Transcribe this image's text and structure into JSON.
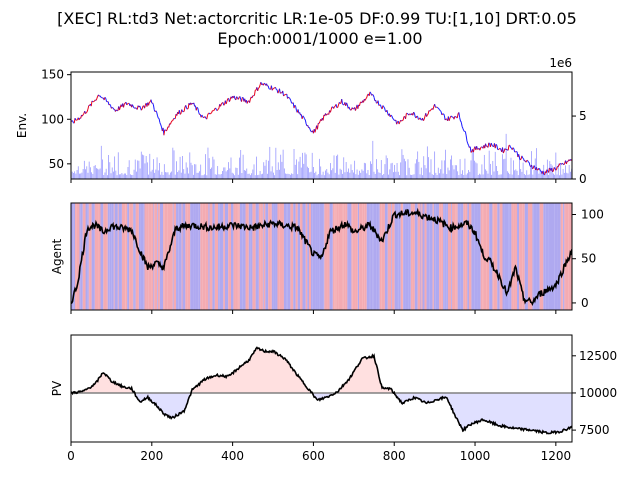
{
  "title_line1": "[XEC] RL:td3 Net:actorcritic LR:1e-05 DF:0.99 TU:[1,10] DRT:0.05",
  "title_line2": "Epoch:0001/1000 e=1.00",
  "chart_data": [
    {
      "type": "line",
      "panel": "env",
      "ylabel": "Env.",
      "x_range": [
        0,
        1240
      ],
      "ylim": [
        33,
        153
      ],
      "yticks": [
        "50",
        "100",
        "150"
      ],
      "right_axis": {
        "ylim": [
          0,
          8.5
        ],
        "ticks": [
          "0",
          "5"
        ],
        "offset_label": "1e6"
      },
      "series": [
        {
          "color": "#1a1aff",
          "x": [
            0,
            30,
            70,
            110,
            140,
            170,
            200,
            230,
            260,
            300,
            330,
            360,
            400,
            440,
            470,
            500,
            530,
            560,
            600,
            630,
            670,
            700,
            740,
            780,
            810,
            840,
            870,
            900,
            930,
            960,
            990,
            1010,
            1040,
            1070,
            1090,
            1110,
            1140,
            1170,
            1200,
            1240
          ],
          "y": [
            95,
            105,
            128,
            110,
            118,
            112,
            120,
            85,
            105,
            118,
            100,
            112,
            125,
            120,
            140,
            135,
            128,
            110,
            85,
            105,
            120,
            110,
            128,
            110,
            95,
            108,
            100,
            115,
            100,
            105,
            65,
            68,
            72,
            65,
            70,
            58,
            48,
            40,
            45,
            55
          ]
        }
      ],
      "volume_color": "#9999ff"
    },
    {
      "type": "line",
      "panel": "agent",
      "ylabel": "Agent",
      "x_range": [
        0,
        1240
      ],
      "ylim": [
        -8,
        113
      ],
      "yticks": [
        "0",
        "50",
        "100"
      ],
      "background_colors": [
        "#f3a2aa",
        "#a6a0ee"
      ],
      "x": [
        0,
        15,
        40,
        60,
        80,
        100,
        120,
        150,
        170,
        190,
        210,
        230,
        260,
        300,
        350,
        400,
        450,
        500,
        560,
        600,
        620,
        640,
        680,
        700,
        740,
        770,
        800,
        850,
        900,
        940,
        980,
        1000,
        1020,
        1040,
        1060,
        1080,
        1100,
        1120,
        1140,
        1160,
        1180,
        1200,
        1220,
        1240
      ],
      "y": [
        0,
        20,
        85,
        88,
        80,
        87,
        85,
        83,
        60,
        40,
        45,
        40,
        85,
        88,
        85,
        88,
        85,
        90,
        85,
        55,
        50,
        80,
        90,
        80,
        88,
        70,
        100,
        102,
        95,
        85,
        90,
        80,
        55,
        45,
        30,
        10,
        40,
        5,
        0,
        10,
        15,
        20,
        40,
        60
      ]
    },
    {
      "type": "area",
      "panel": "pv",
      "ylabel": "PV",
      "x_range": [
        0,
        1240
      ],
      "ylim": [
        6700,
        13900
      ],
      "yticks": [
        "7500",
        "10000",
        "12500"
      ],
      "baseline": 10000,
      "xticks": [
        "0",
        "200",
        "400",
        "600",
        "800",
        "1000",
        "1200"
      ],
      "above_fill": "#ffe0e0",
      "below_fill": "#e0e0ff",
      "x": [
        0,
        30,
        60,
        80,
        100,
        130,
        150,
        170,
        190,
        210,
        230,
        250,
        280,
        300,
        330,
        360,
        390,
        420,
        440,
        460,
        480,
        500,
        530,
        560,
        590,
        610,
        640,
        660,
        690,
        720,
        750,
        770,
        790,
        820,
        850,
        880,
        910,
        930,
        950,
        970,
        990,
        1020,
        1060,
        1100,
        1140,
        1180,
        1210,
        1240
      ],
      "y": [
        10000,
        10100,
        10600,
        11400,
        10800,
        10400,
        10300,
        9400,
        9700,
        9200,
        8600,
        8300,
        8800,
        10200,
        10900,
        11200,
        11100,
        11800,
        12200,
        13000,
        12800,
        12800,
        12300,
        11200,
        10200,
        9500,
        9800,
        10100,
        11000,
        12300,
        12500,
        10300,
        10300,
        9300,
        9700,
        9300,
        9600,
        9700,
        8500,
        7500,
        7900,
        8200,
        7800,
        7600,
        7500,
        7300,
        7400,
        7700
      ]
    }
  ]
}
